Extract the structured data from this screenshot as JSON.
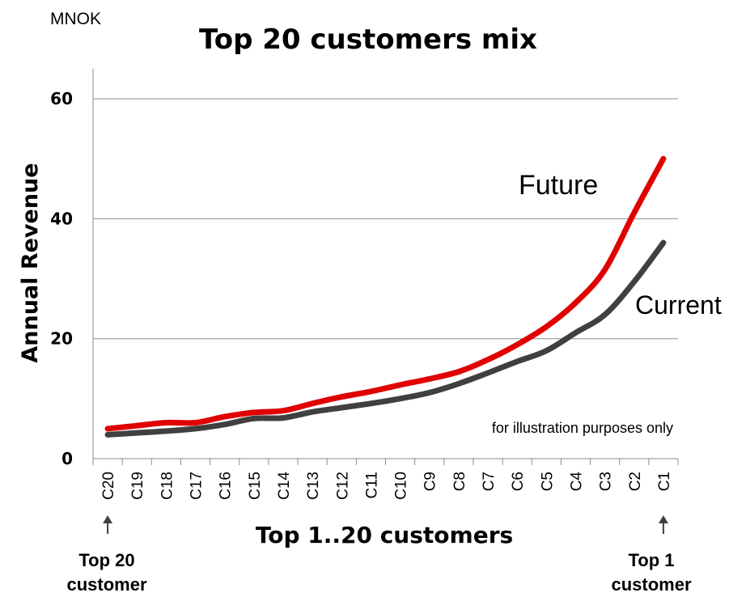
{
  "unit_label": "MNOK",
  "chart_data": {
    "type": "line",
    "title": "Top 20 customers mix",
    "xlabel": "Top 1..20 customers",
    "ylabel": "Annual Revenue",
    "categories": [
      "C20",
      "C19",
      "C18",
      "C17",
      "C16",
      "C15",
      "C14",
      "C13",
      "C12",
      "C11",
      "C10",
      "C9",
      "C8",
      "C7",
      "C6",
      "C5",
      "C4",
      "C3",
      "C2",
      "C1"
    ],
    "series": [
      {
        "name": "Future",
        "color": "#e00000",
        "values": [
          5,
          5.5,
          6,
          6,
          7,
          7.7,
          8,
          9.2,
          10.3,
          11.2,
          12.3,
          13.3,
          14.5,
          16.5,
          19,
          22,
          26,
          31.5,
          41,
          50
        ]
      },
      {
        "name": "Current",
        "color": "#404040",
        "values": [
          4,
          4.3,
          4.6,
          5,
          5.7,
          6.7,
          6.8,
          7.8,
          8.5,
          9.2,
          10,
          11,
          12.5,
          14.3,
          16.2,
          18,
          21,
          24,
          29.5,
          36
        ]
      }
    ],
    "ylim": [
      0,
      65
    ],
    "yticks": [
      0,
      20,
      40,
      60
    ],
    "grid": true,
    "annotation": "for illustration purposes only"
  },
  "bottom_left_label": [
    "Top 20",
    "customer"
  ],
  "bottom_right_label": [
    "Top 1",
    "customer"
  ]
}
